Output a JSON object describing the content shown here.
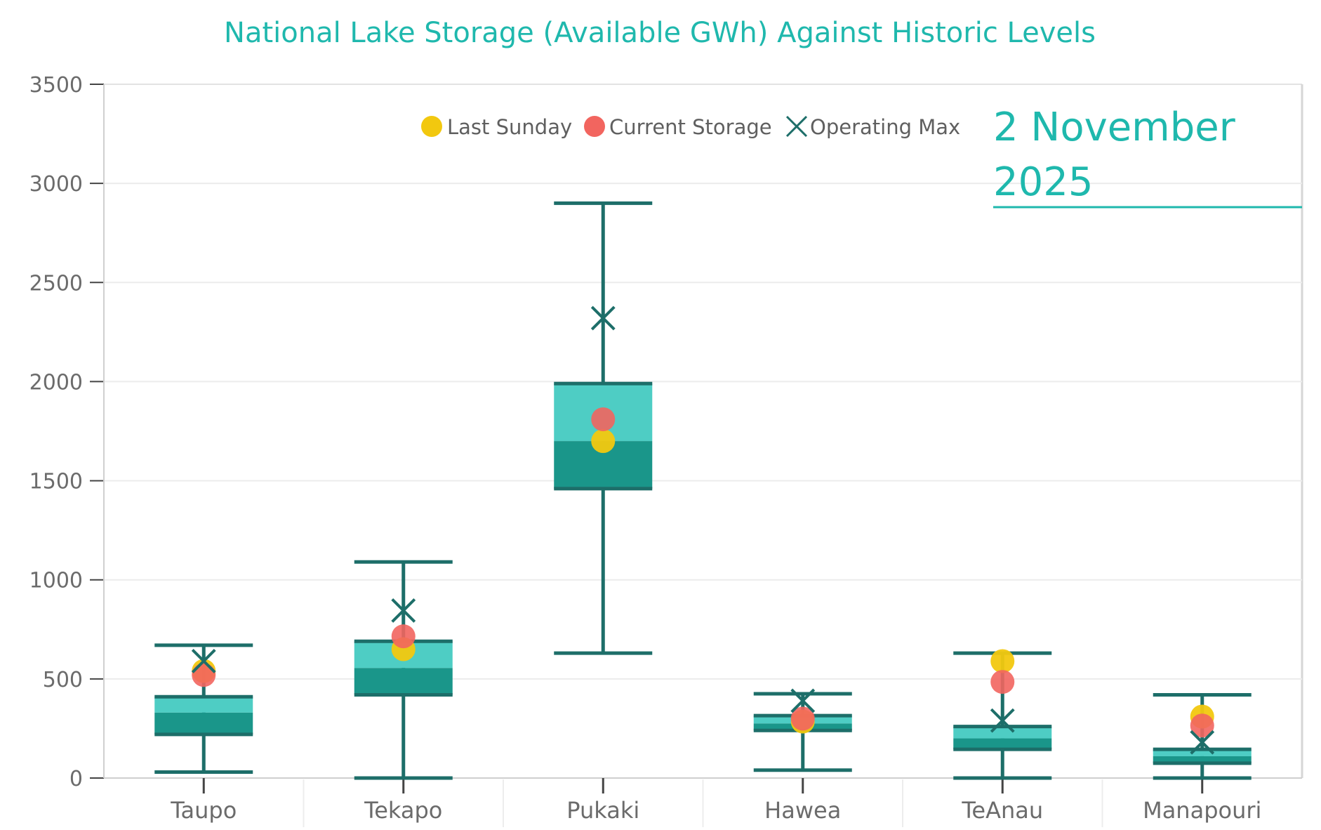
{
  "chart_data": {
    "type": "boxplot",
    "title": "National Lake Storage (Available GWh) Against Historic Levels",
    "xlabel": "",
    "ylabel": "",
    "ylim": [
      0,
      3500
    ],
    "yticks": [
      0,
      500,
      1000,
      1500,
      2000,
      2500,
      3000,
      3500
    ],
    "date_label": [
      "2 November",
      "2025"
    ],
    "legend": [
      {
        "key": "last_sunday",
        "label": "Last Sunday",
        "color": "#f2c80f",
        "marker": "circle"
      },
      {
        "key": "current",
        "label": "Current Storage",
        "color": "#f2655f",
        "marker": "circle"
      },
      {
        "key": "op_max",
        "label": "Operating Max",
        "color": "#1d6e69",
        "marker": "x"
      }
    ],
    "colors": {
      "box_upper": "#4ecdc4",
      "box_lower": "#1a968a",
      "whisker": "#1d6e69",
      "band": "#a8e6e1",
      "title": "#1fb8ad"
    },
    "categories": [
      "Taupo",
      "Tekapo",
      "Pukaki",
      "Hawea",
      "TeAnau",
      "Manapouri"
    ],
    "series": [
      {
        "name": "Taupo",
        "min": 30,
        "q1": 220,
        "median": 330,
        "q3": 410,
        "max": 670,
        "op_max": 590,
        "current": 520,
        "last_sunday": 540
      },
      {
        "name": "Tekapo",
        "min": 0,
        "q1": 420,
        "median": 555,
        "q3": 690,
        "max": 1090,
        "op_max": 845,
        "current": 715,
        "last_sunday": 650
      },
      {
        "name": "Pukaki",
        "min": 630,
        "q1": 1460,
        "median": 1700,
        "q3": 1990,
        "max": 2900,
        "op_max": 2320,
        "current": 1810,
        "last_sunday": 1700
      },
      {
        "name": "Hawea",
        "min": 40,
        "q1": 240,
        "median": 275,
        "q3": 315,
        "max": 425,
        "op_max": 390,
        "current": 300,
        "last_sunday": 285
      },
      {
        "name": "TeAnau",
        "min": 0,
        "q1": 145,
        "median": 200,
        "q3": 260,
        "max": 630,
        "op_max": 290,
        "current": 485,
        "last_sunday": 590
      },
      {
        "name": "Manapouri",
        "min": 0,
        "q1": 75,
        "median": 110,
        "q3": 145,
        "max": 420,
        "op_max": 180,
        "current": 265,
        "last_sunday": 310
      }
    ]
  }
}
